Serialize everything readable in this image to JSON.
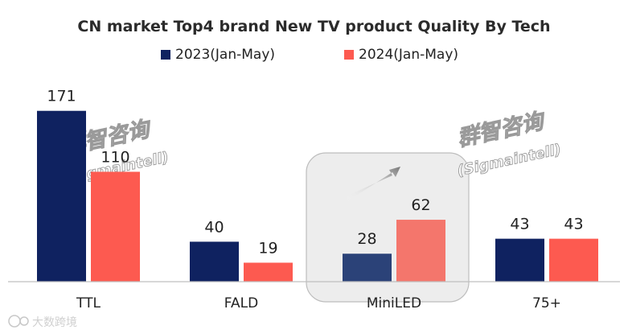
{
  "chart_data": {
    "type": "bar",
    "title": "CN market Top4 brand New TV  product Quality By Tech",
    "categories": [
      "TTL",
      "FALD",
      "MiniLED",
      "75+"
    ],
    "series": [
      {
        "name": "2023(Jan-May)",
        "values": [
          171,
          40,
          28,
          43
        ],
        "color": "#0f2260"
      },
      {
        "name": "2024(Jan-May)",
        "values": [
          110,
          19,
          62,
          43
        ],
        "color": "#fd5a50"
      }
    ],
    "highlight_category": "MiniLED",
    "highlight_colors": [
      "#2b4278",
      "#f4766c"
    ],
    "ylim": [
      0,
      190
    ],
    "grid": false,
    "legend_position": "top"
  },
  "watermarks": [
    "群智咨询",
    "(Sigmaintell)"
  ],
  "footer_logo": "大数跨境"
}
